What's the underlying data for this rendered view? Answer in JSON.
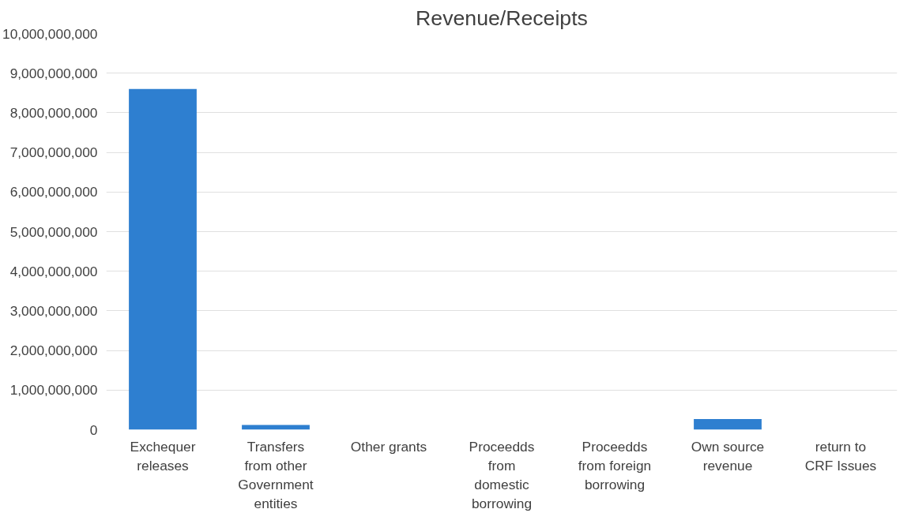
{
  "chart_data": {
    "type": "bar",
    "title": "Revenue/Receipts",
    "categories": [
      "Exchequer releases",
      "Transfers from other Government entities",
      "Other grants",
      "Proceedds from domestic borrowing",
      "Proceedds from foreign borrowing",
      "Own source revenue",
      "return to CRF Issues"
    ],
    "values": [
      8600000000,
      120000000,
      0,
      0,
      0,
      270000000,
      0
    ],
    "color": "#2e7fd0",
    "ylim": [
      0,
      10000000000
    ],
    "yticks": [
      {
        "value": 0,
        "label": "0"
      },
      {
        "value": 1000000000,
        "label": "1,000,000,000"
      },
      {
        "value": 2000000000,
        "label": "2,000,000,000"
      },
      {
        "value": 3000000000,
        "label": "3,000,000,000"
      },
      {
        "value": 4000000000,
        "label": "4,000,000,000"
      },
      {
        "value": 5000000000,
        "label": "5,000,000,000"
      },
      {
        "value": 6000000000,
        "label": "6,000,000,000"
      },
      {
        "value": 7000000000,
        "label": "7,000,000,000"
      },
      {
        "value": 8000000000,
        "label": "8,000,000,000"
      },
      {
        "value": 9000000000,
        "label": "9,000,000,000"
      },
      {
        "value": 10000000000,
        "label": "10,000,000,000"
      }
    ],
    "grid": "y"
  }
}
